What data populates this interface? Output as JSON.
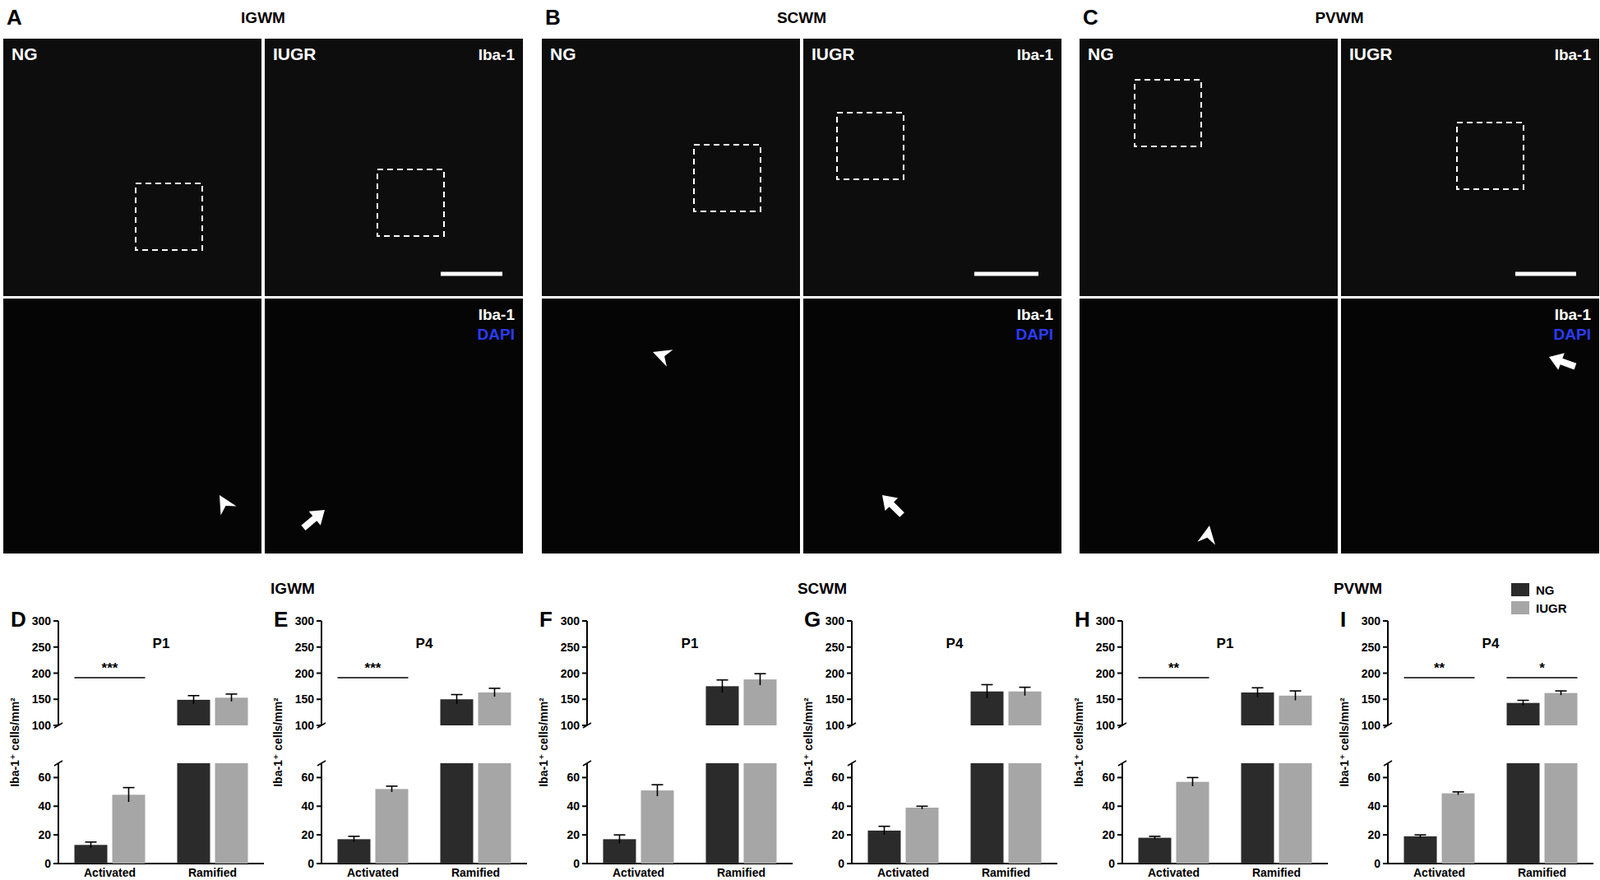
{
  "image_panels": [
    {
      "label": "A",
      "title": "IGWM",
      "groups": [
        "NG",
        "IUGR"
      ],
      "stain": "Iba-1",
      "merge": [
        "Iba-1",
        "DAPI"
      ]
    },
    {
      "label": "B",
      "title": "SCWM",
      "groups": [
        "NG",
        "IUGR"
      ],
      "stain": "Iba-1",
      "merge": [
        "Iba-1",
        "DAPI"
      ]
    },
    {
      "label": "C",
      "title": "PVWM",
      "groups": [
        "NG",
        "IUGR"
      ],
      "stain": "Iba-1",
      "merge": [
        "Iba-1",
        "DAPI"
      ]
    }
  ],
  "chart_groups": [
    "IGWM",
    "SCWM",
    "PVWM"
  ],
  "chart_data": [
    {
      "type": "bar",
      "panel": "D",
      "title": "P1",
      "y_label": "Iba-1⁺ cells/mm²",
      "categories": [
        "Activated",
        "Ramified"
      ],
      "series": [
        {
          "name": "NG",
          "color": "#2b2b2b",
          "values": [
            13,
            149
          ],
          "errors": [
            2,
            8
          ]
        },
        {
          "name": "IUGR",
          "color": "#a6a6a6",
          "values": [
            48,
            153
          ],
          "errors": [
            5,
            7
          ]
        }
      ],
      "ylim": [
        0,
        300
      ],
      "y_break": [
        70,
        100
      ],
      "yticks": [
        0,
        20,
        40,
        60,
        100,
        150,
        200,
        250,
        300
      ],
      "annotations": [
        {
          "text": "***",
          "category": 0
        }
      ]
    },
    {
      "type": "bar",
      "panel": "E",
      "title": "P4",
      "y_label": "Iba-1⁺ cells/mm²",
      "categories": [
        "Activated",
        "Ramified"
      ],
      "series": [
        {
          "name": "NG",
          "color": "#2b2b2b",
          "values": [
            17,
            150
          ],
          "errors": [
            2,
            9
          ]
        },
        {
          "name": "IUGR",
          "color": "#a6a6a6",
          "values": [
            52,
            163
          ],
          "errors": [
            2,
            8
          ]
        }
      ],
      "ylim": [
        0,
        300
      ],
      "y_break": [
        70,
        100
      ],
      "yticks": [
        0,
        20,
        40,
        60,
        100,
        150,
        200,
        250,
        300
      ],
      "annotations": [
        {
          "text": "***",
          "category": 0
        }
      ]
    },
    {
      "type": "bar",
      "panel": "F",
      "title": "P1",
      "y_label": "Iba-1⁺ cells/mm²",
      "categories": [
        "Activated",
        "Ramified"
      ],
      "series": [
        {
          "name": "NG",
          "color": "#2b2b2b",
          "values": [
            17,
            175
          ],
          "errors": [
            3,
            12
          ]
        },
        {
          "name": "IUGR",
          "color": "#a6a6a6",
          "values": [
            51,
            188
          ],
          "errors": [
            4,
            11
          ]
        }
      ],
      "ylim": [
        0,
        300
      ],
      "y_break": [
        70,
        100
      ],
      "yticks": [
        0,
        20,
        40,
        60,
        100,
        150,
        200,
        250,
        300
      ]
    },
    {
      "type": "bar",
      "panel": "G",
      "title": "P4",
      "y_label": "Iba-1⁺ cells/mm²",
      "categories": [
        "Activated",
        "Ramified"
      ],
      "series": [
        {
          "name": "NG",
          "color": "#2b2b2b",
          "values": [
            23,
            165
          ],
          "errors": [
            3,
            13
          ]
        },
        {
          "name": "IUGR",
          "color": "#a6a6a6",
          "values": [
            39,
            165
          ],
          "errors": [
            1,
            8
          ]
        }
      ],
      "ylim": [
        0,
        300
      ],
      "y_break": [
        70,
        100
      ],
      "yticks": [
        0,
        20,
        40,
        60,
        100,
        150,
        200,
        250,
        300
      ]
    },
    {
      "type": "bar",
      "panel": "H",
      "title": "P1",
      "y_label": "Iba-1⁺ cells/mm²",
      "categories": [
        "Activated",
        "Ramified"
      ],
      "series": [
        {
          "name": "NG",
          "color": "#2b2b2b",
          "values": [
            18,
            163
          ],
          "errors": [
            1,
            9
          ]
        },
        {
          "name": "IUGR",
          "color": "#a6a6a6",
          "values": [
            57,
            157
          ],
          "errors": [
            3,
            9
          ]
        }
      ],
      "ylim": [
        0,
        300
      ],
      "y_break": [
        70,
        100
      ],
      "yticks": [
        0,
        20,
        40,
        60,
        100,
        150,
        200,
        250,
        300
      ],
      "annotations": [
        {
          "text": "**",
          "category": 0
        }
      ]
    },
    {
      "type": "bar",
      "panel": "I",
      "title": "P4",
      "y_label": "Iba-1⁺ cells/mm²",
      "categories": [
        "Activated",
        "Ramified"
      ],
      "series": [
        {
          "name": "NG",
          "color": "#2b2b2b",
          "values": [
            19,
            143
          ],
          "errors": [
            1,
            5
          ]
        },
        {
          "name": "IUGR",
          "color": "#a6a6a6",
          "values": [
            49,
            162
          ],
          "errors": [
            1,
            4
          ]
        }
      ],
      "ylim": [
        0,
        300
      ],
      "y_break": [
        70,
        100
      ],
      "yticks": [
        0,
        20,
        40,
        60,
        100,
        150,
        200,
        250,
        300
      ],
      "annotations": [
        {
          "text": "**",
          "category": 0
        },
        {
          "text": "*",
          "category": 1
        }
      ],
      "legend": "upper right"
    }
  ]
}
